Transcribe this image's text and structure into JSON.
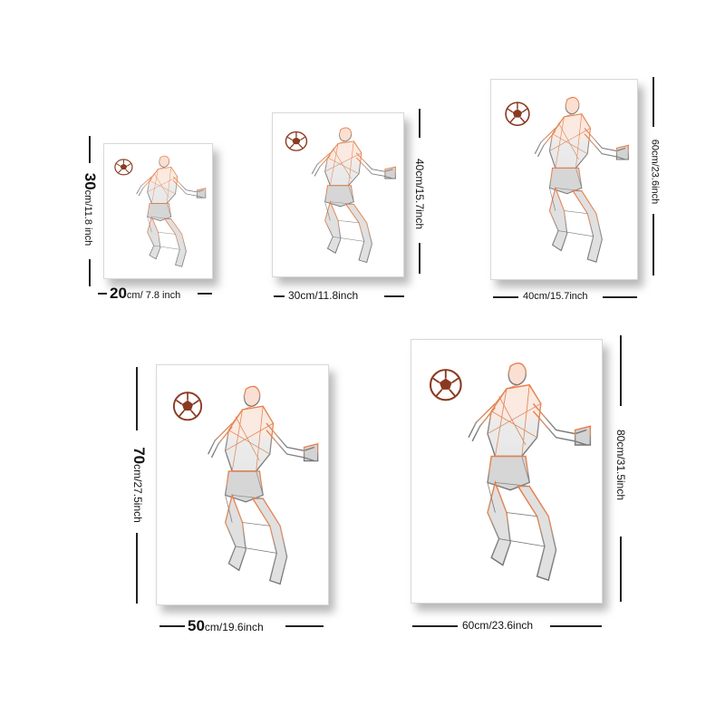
{
  "colors": {
    "accent": "#e8773f",
    "mesh": "#6f6f6f",
    "ball": "#8a3a22",
    "line": "#222222"
  },
  "sizes": [
    {
      "id": "size-1",
      "width_big": "20",
      "width_small": "cm/ 7.8 inch",
      "height_big": "30",
      "height_small": "cm/11.8 inch"
    },
    {
      "id": "size-2",
      "width_text": "30cm/11.8inch",
      "height_text": "40cm/15.7inch"
    },
    {
      "id": "size-3",
      "width_text": "40cm/15.7inch",
      "height_text": "60cm/23.6inch"
    },
    {
      "id": "size-4",
      "width_big": "50",
      "width_small": "cm/19.6inch",
      "height_big": "70",
      "height_small": "cm/27.5inch"
    },
    {
      "id": "size-5",
      "width_text": "60cm/23.6inch",
      "height_text": "80cm/31.5inch"
    }
  ]
}
